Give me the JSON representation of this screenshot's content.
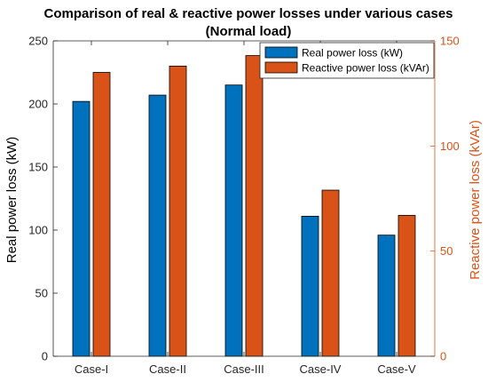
{
  "chart_data": {
    "type": "bar",
    "title": "Comparison of real & reactive power losses under various cases",
    "subtitle": "(Normal load)",
    "categories": [
      "Case-I",
      "Case-II",
      "Case-III",
      "Case-IV",
      "Case-V"
    ],
    "series": [
      {
        "name": "Real power loss (kW)",
        "axis": "left",
        "color": "#0072BD",
        "values": [
          202,
          207,
          215,
          111,
          96
        ]
      },
      {
        "name": "Reactive power loss (kVAr)",
        "axis": "right",
        "color": "#D95319",
        "values": [
          135,
          138,
          143,
          79,
          67
        ]
      }
    ],
    "ylabel": "Real power loss (kW)",
    "ylim": [
      0,
      250
    ],
    "yticks": [
      "0",
      "50",
      "100",
      "150",
      "200",
      "250"
    ],
    "y2label": "Reactive power loss (kVAr)",
    "y2lim": [
      0,
      150
    ],
    "y2ticks": [
      "0",
      "50",
      "100",
      "150"
    ],
    "y2color": "#D95319",
    "grid": false,
    "legend_position": "top-right"
  }
}
